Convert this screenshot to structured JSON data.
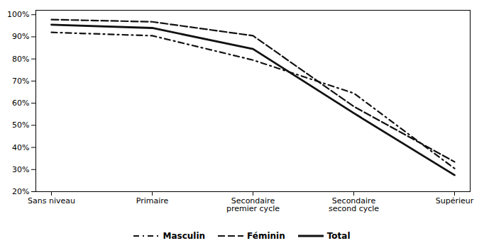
{
  "chart_data": {
    "type": "line",
    "categories": [
      "Sans niveau",
      "Primaire",
      "Secondaire\npremier cycle",
      "Secondaire\nsecond cycle",
      "Supérieur"
    ],
    "series": [
      {
        "name": "Masculin",
        "color": "#111111",
        "line_style": "dashdot",
        "values": [
          0.92,
          0.905,
          0.795,
          0.645,
          0.305
        ]
      },
      {
        "name": "Féminin",
        "color": "#111111",
        "line_style": "dashed",
        "values": [
          0.978,
          0.968,
          0.905,
          0.585,
          0.335
        ]
      },
      {
        "name": "Total",
        "color": "#111111",
        "line_style": "solid",
        "values": [
          0.955,
          0.94,
          0.845,
          0.555,
          0.275
        ]
      }
    ],
    "ylim": [
      0.2,
      1.02
    ],
    "yticks": [
      {
        "value": 0.2,
        "label": "20%"
      },
      {
        "value": 0.3,
        "label": "30%"
      },
      {
        "value": 0.4,
        "label": "40%"
      },
      {
        "value": 0.5,
        "label": "50%"
      },
      {
        "value": 0.6,
        "label": "60%"
      },
      {
        "value": 0.7,
        "label": "70%"
      },
      {
        "value": 0.8,
        "label": "80%"
      },
      {
        "value": 0.9,
        "label": "90%"
      },
      {
        "value": 1.0,
        "label": "100%"
      }
    ],
    "grid": false,
    "legend": "bottom"
  }
}
